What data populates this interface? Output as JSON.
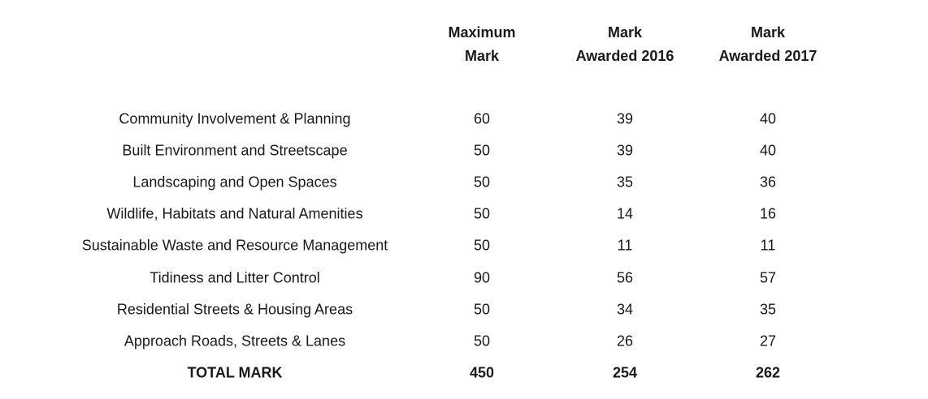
{
  "table": {
    "headers": {
      "max": [
        "Maximum",
        "Mark"
      ],
      "y2016": [
        "Mark",
        "Awarded 2016"
      ],
      "y2017": [
        "Mark",
        "Awarded 2017"
      ]
    },
    "rows": [
      {
        "category": "Community Involvement & Planning",
        "max": "60",
        "y2016": "39",
        "y2017": "40"
      },
      {
        "category": "Built Environment and Streetscape",
        "max": "50",
        "y2016": "39",
        "y2017": "40"
      },
      {
        "category": "Landscaping and Open Spaces",
        "max": "50",
        "y2016": "35",
        "y2017": "36"
      },
      {
        "category": "Wildlife, Habitats and Natural Amenities",
        "max": "50",
        "y2016": "14",
        "y2017": "16"
      },
      {
        "category": "Sustainable Waste and Resource Management",
        "max": "50",
        "y2016": "11",
        "y2017": "11"
      },
      {
        "category": "Tidiness and Litter Control",
        "max": "90",
        "y2016": "56",
        "y2017": "57"
      },
      {
        "category": "Residential Streets & Housing Areas",
        "max": "50",
        "y2016": "34",
        "y2017": "35"
      },
      {
        "category": "Approach Roads, Streets & Lanes",
        "max": "50",
        "y2016": "26",
        "y2017": "27"
      }
    ],
    "total": {
      "category": "TOTAL MARK",
      "max": "450",
      "y2016": "254",
      "y2017": "262"
    }
  }
}
